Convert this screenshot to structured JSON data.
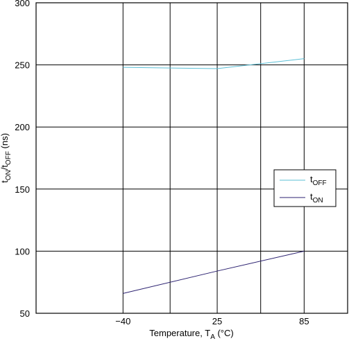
{
  "chart_data": {
    "type": "line",
    "xlabel": {
      "main": "Temperature, T",
      "sub": "A",
      "tail": " (°C)"
    },
    "ylabel": {
      "p1": "t",
      "s1": "ON",
      "p2": "/t",
      "s2": "OFF",
      "tail": " (ns)"
    },
    "x_ticks": [
      -40,
      25,
      85
    ],
    "x_tick_labels": [
      "−40",
      "25",
      "85"
    ],
    "xlim": [
      -100,
      115
    ],
    "ylim": [
      50,
      300
    ],
    "y_ticks": [
      50,
      100,
      150,
      200,
      250,
      300
    ],
    "grid": true,
    "legend_position": "right",
    "series": [
      {
        "name": "t",
        "name_sub": "OFF",
        "color": "#5bbfd6",
        "points": [
          [
            -40,
            248
          ],
          [
            25,
            247
          ],
          [
            85,
            255
          ]
        ]
      },
      {
        "name": "t",
        "name_sub": "ON",
        "color": "#2b2170",
        "points": [
          [
            -40,
            66
          ],
          [
            25,
            84
          ],
          [
            85,
            100
          ]
        ]
      }
    ]
  }
}
